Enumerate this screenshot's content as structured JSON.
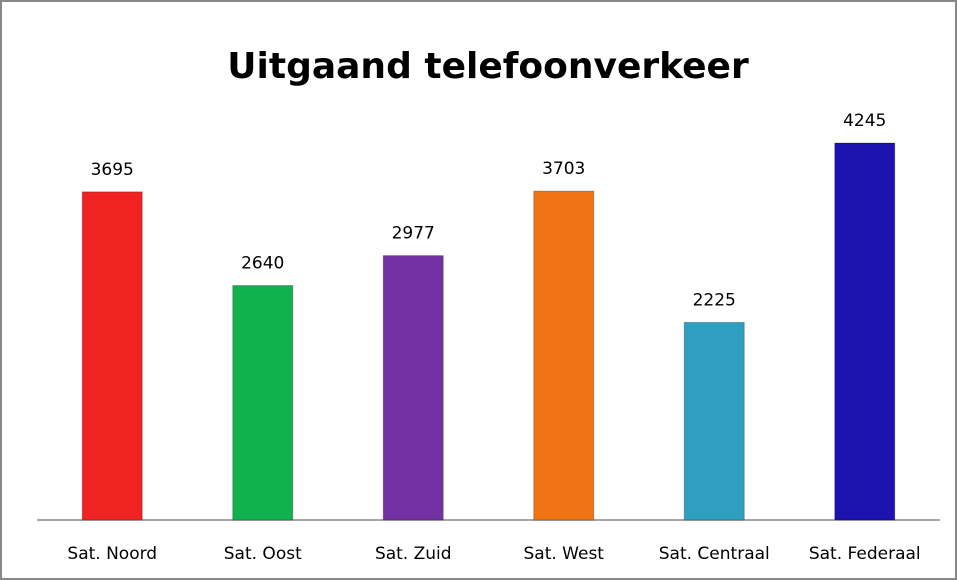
{
  "chart_data": {
    "type": "bar",
    "title": "Uitgaand telefoonverkeer",
    "categories": [
      "Sat. Noord",
      "Sat. Oost",
      "Sat. Zuid",
      "Sat. West",
      "Sat. Centraal",
      "Sat. Federaal"
    ],
    "values": [
      3695,
      2640,
      2977,
      3703,
      2225,
      4245
    ],
    "colors": [
      "#f02222",
      "#0fb24f",
      "#7431a3",
      "#f07414",
      "#2f9fbf",
      "#1c12b0"
    ]
  }
}
